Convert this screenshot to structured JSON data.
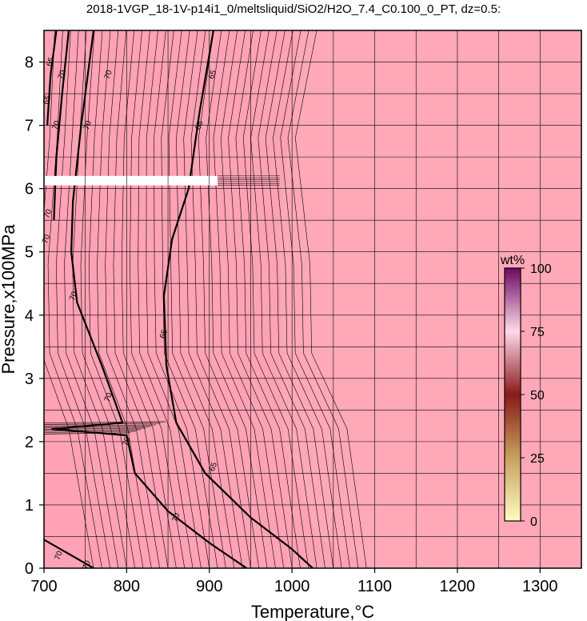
{
  "chart_data": {
    "type": "heatmap",
    "title": "2018-1VGP_18-1V-p14i1_0/meltsliquid/SiO2/H2O_7.4_C0.100_0_PT, dz=0.5:",
    "xlabel": "Temperature,°C",
    "ylabel": "Pressure,x100MPa",
    "xlim": [
      700,
      1350
    ],
    "ylim": [
      0,
      8.5
    ],
    "x_ticks": [
      700,
      800,
      900,
      1000,
      1100,
      1200,
      1300
    ],
    "y_ticks": [
      0,
      1,
      2,
      3,
      4,
      5,
      6,
      7,
      8
    ],
    "grid": true,
    "fill_color": "#ffa8b8",
    "contour_interval": 0.5,
    "colorbar": {
      "label": "wt%",
      "ticks": [
        0,
        25,
        50,
        75,
        100
      ],
      "colors": [
        "#fffcc0",
        "#c8a060",
        "#8a1a1a",
        "#ffd8e8",
        "#6a0a60"
      ]
    },
    "contours": [
      {
        "level": 70,
        "points": [
          [
            760,
            8.5
          ],
          [
            745,
            7.0
          ],
          [
            735,
            5.8
          ],
          [
            733,
            5.0
          ],
          [
            740,
            4.2
          ],
          [
            770,
            3.2
          ],
          [
            795,
            2.3
          ],
          [
            710,
            2.2
          ],
          [
            800,
            2.1
          ],
          [
            810,
            1.5
          ],
          [
            850,
            0.9
          ],
          [
            900,
            0.4
          ],
          [
            945,
            0
          ]
        ]
      },
      {
        "level": 65,
        "points": [
          [
            905,
            8.5
          ],
          [
            888,
            7.2
          ],
          [
            875,
            6.0
          ],
          [
            855,
            5.2
          ],
          [
            845,
            4.3
          ],
          [
            848,
            3.2
          ],
          [
            860,
            2.3
          ],
          [
            895,
            1.5
          ],
          [
            950,
            0.8
          ],
          [
            1000,
            0.3
          ],
          [
            1025,
            0
          ]
        ]
      },
      {
        "level": 70,
        "points": [
          [
            730,
            8.5
          ],
          [
            722,
            7.5
          ],
          [
            715,
            6.5
          ],
          [
            712,
            5.5
          ]
        ]
      },
      {
        "level": 65,
        "points": [
          [
            715,
            8.5
          ],
          [
            708,
            7.8
          ],
          [
            704,
            7.0
          ]
        ]
      },
      {
        "level": 70,
        "points": [
          [
            700,
            0.45
          ],
          [
            740,
            0.15
          ],
          [
            760,
            0
          ]
        ]
      }
    ],
    "contour_labels": [
      {
        "text": "65",
        "x": 708,
        "y": 8.0
      },
      {
        "text": "70",
        "x": 722,
        "y": 7.8
      },
      {
        "text": "65",
        "x": 704,
        "y": 7.4
      },
      {
        "text": "70",
        "x": 715,
        "y": 7.0
      },
      {
        "text": "70",
        "x": 753,
        "y": 7.0
      },
      {
        "text": "70",
        "x": 778,
        "y": 7.8
      },
      {
        "text": "65",
        "x": 904,
        "y": 7.8
      },
      {
        "text": "65",
        "x": 888,
        "y": 7.0
      },
      {
        "text": "70",
        "x": 705,
        "y": 5.6
      },
      {
        "text": "70",
        "x": 703,
        "y": 5.2
      },
      {
        "text": "70",
        "x": 736,
        "y": 4.3
      },
      {
        "text": "65",
        "x": 845,
        "y": 3.7
      },
      {
        "text": "70",
        "x": 778,
        "y": 2.7
      },
      {
        "text": "70",
        "x": 800,
        "y": 2.0
      },
      {
        "text": "65",
        "x": 905,
        "y": 1.6
      },
      {
        "text": "70",
        "x": 860,
        "y": 0.8
      },
      {
        "text": "70",
        "x": 718,
        "y": 0.2
      },
      {
        "text": "70",
        "x": 752,
        "y": 0.05
      }
    ],
    "gaps": [
      {
        "y_range": [
          6.05,
          6.2
        ],
        "x_range": [
          700,
          910
        ]
      }
    ]
  }
}
